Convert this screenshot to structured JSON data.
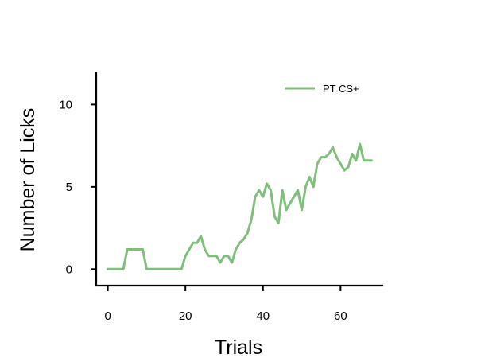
{
  "chart_data": {
    "type": "line",
    "title": "",
    "xlabel": "Trials",
    "ylabel": "Number of Licks",
    "xlim": [
      -3,
      71
    ],
    "ylim": [
      -1,
      12
    ],
    "xticks": [
      0,
      20,
      40,
      60
    ],
    "yticks": [
      0,
      5,
      10
    ],
    "grid": false,
    "legend_position": "top-right",
    "series": [
      {
        "name": "PT CS+",
        "color": "#7fbf7b",
        "x": [
          0,
          1,
          2,
          3,
          4,
          5,
          6,
          7,
          8,
          9,
          10,
          11,
          12,
          13,
          14,
          15,
          16,
          17,
          18,
          19,
          20,
          21,
          22,
          23,
          24,
          25,
          26,
          27,
          28,
          29,
          30,
          31,
          32,
          33,
          34,
          35,
          36,
          37,
          38,
          39,
          40,
          41,
          42,
          43,
          44,
          45,
          46,
          47,
          48,
          49,
          50,
          51,
          52,
          53,
          54,
          55,
          56,
          57,
          58,
          59,
          60,
          61,
          62,
          63,
          64,
          65,
          66,
          67,
          68
        ],
        "values": [
          0,
          0,
          0,
          0,
          0,
          1.2,
          1.2,
          1.2,
          1.2,
          1.2,
          0,
          0,
          0,
          0,
          0,
          0,
          0,
          0,
          0,
          0,
          0.8,
          1.2,
          1.6,
          1.6,
          2.0,
          1.2,
          0.8,
          0.8,
          0.8,
          0.4,
          0.8,
          0.8,
          0.4,
          1.2,
          1.6,
          1.8,
          2.2,
          3.0,
          4.4,
          4.8,
          4.4,
          5.2,
          4.8,
          3.2,
          2.8,
          4.8,
          3.6,
          4.0,
          4.4,
          4.8,
          3.6,
          5.0,
          5.6,
          5.0,
          6.4,
          6.8,
          6.8,
          7.0,
          7.4,
          6.8,
          6.4,
          6.0,
          6.2,
          7.0,
          6.6,
          7.6,
          6.6,
          6.6,
          6.6
        ]
      }
    ]
  }
}
